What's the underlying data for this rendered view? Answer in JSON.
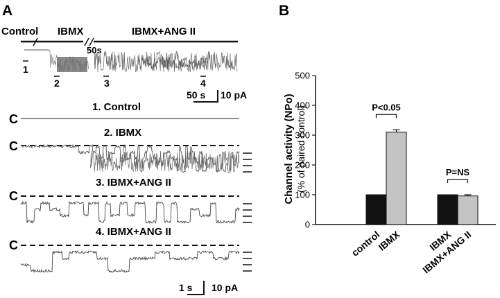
{
  "panel_a": {
    "letter": "A",
    "condition_labels": {
      "control": "Control",
      "ibmx": "IBMX",
      "ibmx_ang": "IBMX+ANG II"
    },
    "break_label": "50s",
    "segment_marks": [
      "1",
      "2",
      "3",
      "4"
    ],
    "scale_bar_overview": {
      "time": "50 s",
      "current": "10 pA"
    },
    "trace_titles": [
      "1. Control",
      "2. IBMX",
      "3. IBMX+ANG II",
      "4. IBMX+ANG II"
    ],
    "closed_marker": "C",
    "scale_bar_traces": {
      "time": "1 s",
      "current": "10 pA"
    }
  },
  "panel_b": {
    "letter": "B",
    "colors": {
      "control": "#111111",
      "treated": "#c4c4c4"
    }
  },
  "chart_data": {
    "type": "bar",
    "ylabel": "Channel activity (NPo)",
    "ylabel_sub": "(% of paired control)",
    "ylim": [
      0,
      500
    ],
    "yticks": [
      "0",
      "100",
      "200",
      "300",
      "400",
      "500"
    ],
    "grid": false,
    "groups": [
      {
        "bars": [
          {
            "label": "control",
            "value": 100,
            "error": 0,
            "color": "#111111"
          },
          {
            "label": "IBMX",
            "value": 310,
            "error": 8,
            "color": "#c4c4c4"
          }
        ],
        "annotation": "P<0.05"
      },
      {
        "bars": [
          {
            "label": "IBMX",
            "value": 100,
            "error": 0,
            "color": "#111111"
          },
          {
            "label": "IBMX+ANG II",
            "value": 96,
            "error": 4,
            "color": "#c4c4c4"
          }
        ],
        "annotation": "P=NS"
      }
    ]
  }
}
